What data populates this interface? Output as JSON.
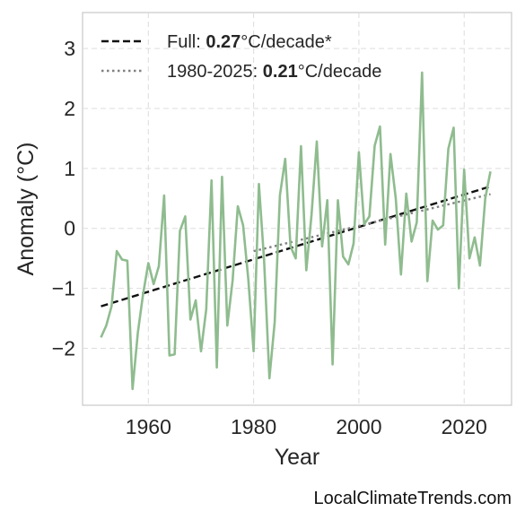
{
  "chart_data": {
    "type": "line",
    "title": "",
    "xlabel": "Year",
    "ylabel": "Anomaly (°C)",
    "xlim": [
      1947.5,
      2029
    ],
    "ylim": [
      -2.95,
      3.6
    ],
    "xticks": [
      1960,
      1980,
      2000,
      2020
    ],
    "yticks": [
      -2,
      -1,
      0,
      1,
      2,
      3
    ],
    "ytick_labels": [
      "−2",
      "−1",
      "0",
      "1",
      "2",
      "3"
    ],
    "grid": true,
    "legend_position": "top-left",
    "series": [
      {
        "color": "#8fbc8f",
        "x": [
          1951,
          1952,
          1953,
          1954,
          1955,
          1956,
          1957,
          1958,
          1959,
          1960,
          1961,
          1962,
          1963,
          1964,
          1965,
          1966,
          1967,
          1968,
          1969,
          1970,
          1971,
          1972,
          1973,
          1974,
          1975,
          1976,
          1977,
          1978,
          1979,
          1980,
          1981,
          1982,
          1983,
          1984,
          1985,
          1986,
          1987,
          1988,
          1989,
          1990,
          1991,
          1992,
          1993,
          1994,
          1995,
          1996,
          1997,
          1998,
          1999,
          2000,
          2001,
          2002,
          2003,
          2004,
          2005,
          2006,
          2007,
          2008,
          2009,
          2010,
          2011,
          2012,
          2013,
          2014,
          2015,
          2016,
          2017,
          2018,
          2019,
          2020,
          2021,
          2022,
          2023,
          2024,
          2025
        ],
        "y": [
          -1.82,
          -1.62,
          -1.3,
          -0.38,
          -0.52,
          -0.54,
          -2.68,
          -1.74,
          -1.1,
          -0.58,
          -0.93,
          -0.63,
          0.55,
          -2.12,
          -2.1,
          -0.04,
          0.2,
          -1.52,
          -1.2,
          -2.05,
          -1.35,
          0.8,
          -2.32,
          0.86,
          -1.62,
          -0.87,
          0.37,
          0.05,
          -0.85,
          -2.05,
          0.74,
          -0.54,
          -2.5,
          -1.56,
          0.55,
          1.16,
          -0.3,
          -0.5,
          1.37,
          -0.7,
          0.22,
          1.45,
          -0.3,
          0.47,
          -2.27,
          0.47,
          -0.47,
          -0.6,
          -0.25,
          1.27,
          0.07,
          0.2,
          1.38,
          1.7,
          -0.27,
          1.24,
          0.5,
          -0.77,
          0.58,
          -0.22,
          0.1,
          2.6,
          -0.88,
          0.13,
          -0.02,
          0.05,
          1.33,
          1.68,
          -1.0,
          0.98,
          -0.5,
          -0.15,
          -0.62,
          0.5,
          0.95
        ]
      }
    ],
    "trends": [
      {
        "color": "#111111",
        "style": "dashed",
        "x": [
          1951,
          2025
        ],
        "y": [
          -1.3,
          0.7
        ]
      },
      {
        "color": "#808080",
        "style": "dotted",
        "x": [
          1980,
          2025
        ],
        "y": [
          -0.38,
          0.57
        ]
      }
    ],
    "legend": [
      {
        "prefix": "Full: ",
        "value": "0.27",
        "suffix": "°C/decade*"
      },
      {
        "prefix": "1980-2025: ",
        "value": "0.21",
        "suffix": "°C/decade"
      }
    ],
    "colors": {
      "grid": "#dddddd",
      "frame": "#cccccc",
      "text": "#262626"
    }
  },
  "credit": "LocalClimateTrends.com"
}
